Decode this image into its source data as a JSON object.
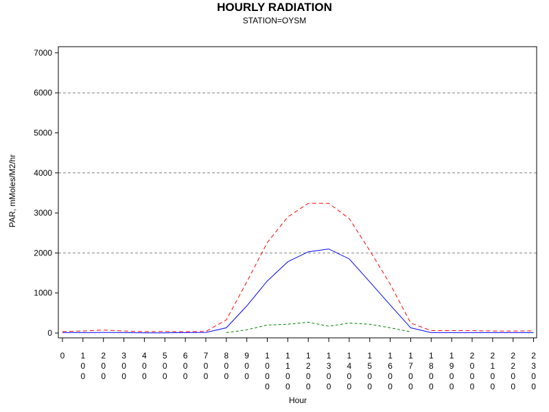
{
  "chart_data": {
    "type": "line",
    "title": "HOURLY RADIATION",
    "subtitle": "STATION=OYSM",
    "xlabel": "Hour",
    "ylabel": "PAR, mMoles/M2/hr",
    "ylim": [
      0,
      7000
    ],
    "yticks": [
      0,
      1000,
      2000,
      3000,
      4000,
      5000,
      6000,
      7000
    ],
    "y_gridlines": [
      2000,
      4000,
      6000
    ],
    "grid": "horizontal dashed at 2000, 4000, 6000",
    "x": [
      0,
      100,
      200,
      300,
      400,
      500,
      600,
      700,
      800,
      900,
      1000,
      1100,
      1200,
      1300,
      1400,
      1500,
      1600,
      1700,
      1800,
      1900,
      2000,
      2100,
      2200,
      2300
    ],
    "xtick_labels": [
      "0",
      "100",
      "200",
      "300",
      "400",
      "500",
      "600",
      "700",
      "800",
      "900",
      "1000",
      "1100",
      "1200",
      "1300",
      "1400",
      "1500",
      "1600",
      "1700",
      "1800",
      "1900",
      "2000",
      "2100",
      "2200",
      "2300"
    ],
    "series": [
      {
        "color": "#0000ff",
        "style": "solid",
        "values": [
          10,
          10,
          15,
          10,
          5,
          5,
          10,
          15,
          130,
          680,
          1300,
          1780,
          2030,
          2100,
          1850,
          1280,
          700,
          130,
          10,
          10,
          10,
          10,
          10,
          10
        ]
      },
      {
        "color": "#ff0000",
        "style": "dashed",
        "values": [
          40,
          50,
          75,
          50,
          35,
          40,
          35,
          40,
          330,
          1280,
          2260,
          2900,
          3240,
          3240,
          2860,
          2060,
          1220,
          250,
          60,
          60,
          60,
          50,
          50,
          55
        ]
      },
      {
        "color": "#008000",
        "style": "dashed",
        "x": [
          800,
          900,
          1000,
          1100,
          1200,
          1300,
          1400,
          1500,
          1600,
          1700
        ],
        "values": [
          10,
          80,
          200,
          220,
          270,
          170,
          250,
          220,
          130,
          30
        ]
      }
    ]
  }
}
